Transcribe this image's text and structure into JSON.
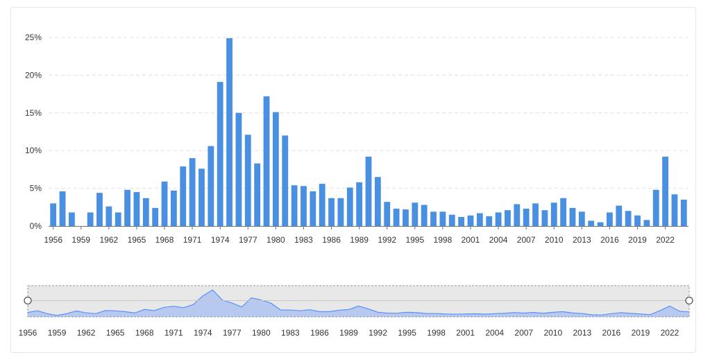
{
  "chart_data": {
    "type": "bar",
    "title": "",
    "xlabel": "",
    "ylabel": "",
    "y_unit": "%",
    "ylim": [
      0,
      25
    ],
    "y_ticks": [
      "0%",
      "5%",
      "10%",
      "15%",
      "20%",
      "25%"
    ],
    "grid": "horizontal dashed",
    "bar_color": "#4a90e2",
    "x_tick_labels": [
      "1956",
      "1959",
      "1962",
      "1965",
      "1968",
      "1971",
      "1974",
      "1977",
      "1980",
      "1983",
      "1986",
      "1989",
      "1992",
      "1995",
      "1998",
      "2001",
      "2004",
      "2007",
      "2010",
      "2013",
      "2016",
      "2019",
      "2022"
    ],
    "categories": [
      "1956",
      "1957",
      "1958",
      "1959",
      "1960",
      "1961",
      "1962",
      "1963",
      "1964",
      "1965",
      "1966",
      "1967",
      "1968",
      "1969",
      "1970",
      "1971",
      "1972",
      "1973",
      "1974",
      "1975",
      "1976",
      "1977",
      "1978",
      "1979",
      "1980",
      "1981",
      "1982",
      "1983",
      "1984",
      "1985",
      "1986",
      "1987",
      "1988",
      "1989",
      "1990",
      "1991",
      "1992",
      "1993",
      "1994",
      "1995",
      "1996",
      "1997",
      "1998",
      "1999",
      "2000",
      "2001",
      "2002",
      "2003",
      "2004",
      "2005",
      "2006",
      "2007",
      "2008",
      "2009",
      "2010",
      "2011",
      "2012",
      "2013",
      "2014",
      "2015",
      "2016",
      "2017",
      "2018",
      "2019",
      "2020",
      "2021",
      "2022",
      "2023",
      "2024"
    ],
    "values": [
      3.0,
      4.6,
      1.8,
      0.0,
      1.8,
      4.4,
      2.6,
      1.8,
      4.8,
      4.5,
      3.7,
      2.4,
      5.9,
      4.7,
      7.9,
      9.0,
      7.6,
      10.6,
      19.1,
      24.9,
      15.0,
      12.1,
      8.3,
      17.2,
      15.1,
      12.0,
      5.4,
      5.3,
      4.6,
      5.6,
      3.7,
      3.7,
      5.1,
      5.8,
      9.2,
      6.5,
      3.2,
      2.3,
      2.2,
      3.1,
      2.8,
      1.9,
      1.9,
      1.5,
      1.2,
      1.4,
      1.7,
      1.3,
      1.8,
      2.1,
      2.9,
      2.3,
      3.0,
      2.1,
      3.1,
      3.7,
      2.4,
      1.9,
      0.7,
      0.5,
      1.8,
      2.7,
      2.0,
      1.4,
      0.8,
      4.8,
      9.2,
      4.2,
      3.5
    ],
    "slider_tick_labels": [
      "1956",
      "1959",
      "1962",
      "1965",
      "1968",
      "1971",
      "1974",
      "1977",
      "1980",
      "1983",
      "1986",
      "1989",
      "1992",
      "1995",
      "1998",
      "2001",
      "2004",
      "2007",
      "2010",
      "2013",
      "2016",
      "2019",
      "2022"
    ]
  },
  "colors": {
    "bar": "#4a90e2",
    "grid": "#e0e0e0",
    "axis": "#6e7079",
    "slider_fill": "#e8e8e8",
    "slider_area": "#5b8ff9"
  }
}
